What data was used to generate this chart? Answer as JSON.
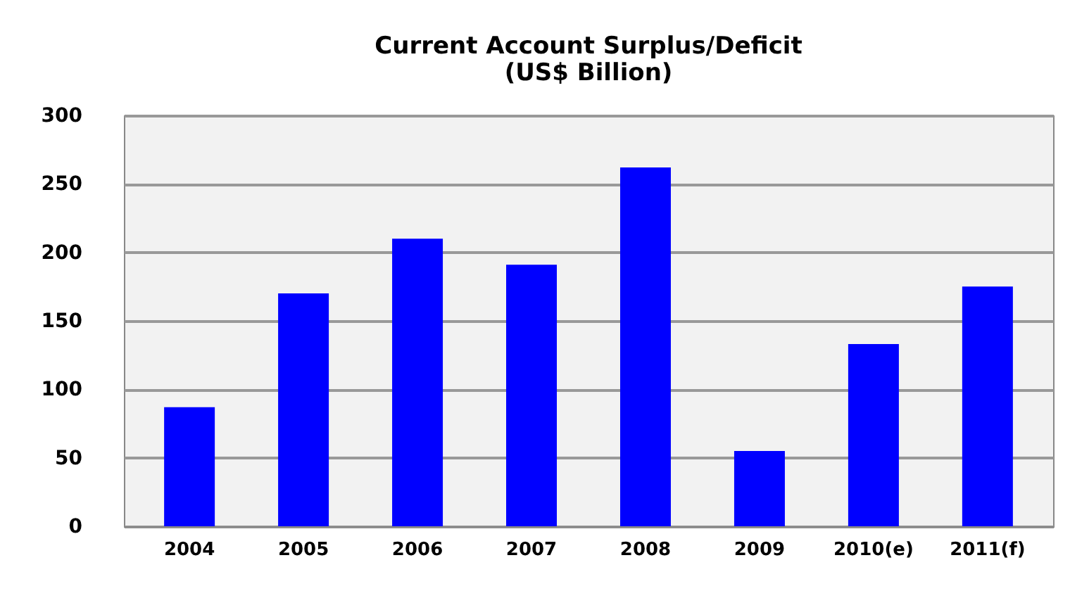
{
  "chart_data": {
    "type": "bar",
    "title": "Current Account Surplus/Deficit",
    "subtitle": "(US$ Billion)",
    "categories": [
      "2004",
      "2005",
      "2006",
      "2007",
      "2008",
      "2009",
      "2010(e)",
      "2011(f)"
    ],
    "values": [
      87,
      170,
      210,
      191,
      262,
      55,
      133,
      175
    ],
    "color": "#0000ff",
    "ylim": [
      0,
      300
    ],
    "yticks": [
      0,
      50,
      100,
      150,
      200,
      250,
      300
    ],
    "grid": "y"
  }
}
